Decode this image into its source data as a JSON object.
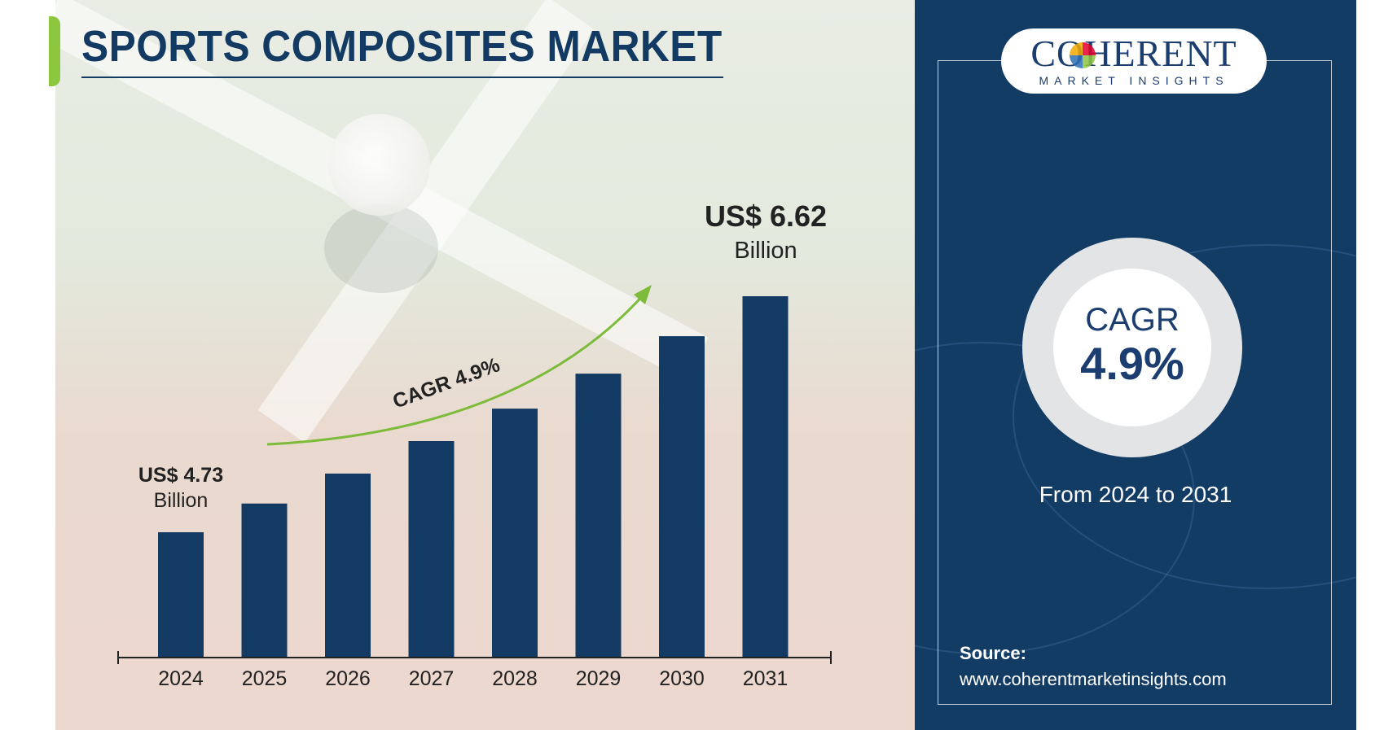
{
  "title": "SPORTS COMPOSITES MARKET",
  "colors": {
    "title": "#123a63",
    "bar": "#123a63",
    "accent": "#8dc63f",
    "right_panel": "#133c65"
  },
  "chart_data": {
    "type": "bar",
    "categories": [
      "2024",
      "2025",
      "2026",
      "2027",
      "2028",
      "2029",
      "2030",
      "2031"
    ],
    "values": [
      4.73,
      4.96,
      5.2,
      5.46,
      5.72,
      6.0,
      6.3,
      6.62
    ],
    "unit": "US$ Billion",
    "grid": false,
    "annotations": [
      {
        "x": "2024",
        "label": "US$ 4.73",
        "sublabel": "Billion"
      },
      {
        "x": "2031",
        "label": "US$ 6.62",
        "sublabel": "Billion"
      }
    ],
    "cagr_arrow_label": "CAGR 4.9%"
  },
  "sidebar": {
    "logo_name": "COHERENT",
    "logo_sub": "MARKET INSIGHTS",
    "cagr_label": "CAGR",
    "cagr_value": "4.9%",
    "period": "From 2024 to 2031",
    "source_label": "Source:",
    "source_url": "www.coherentmarketinsights.com"
  }
}
